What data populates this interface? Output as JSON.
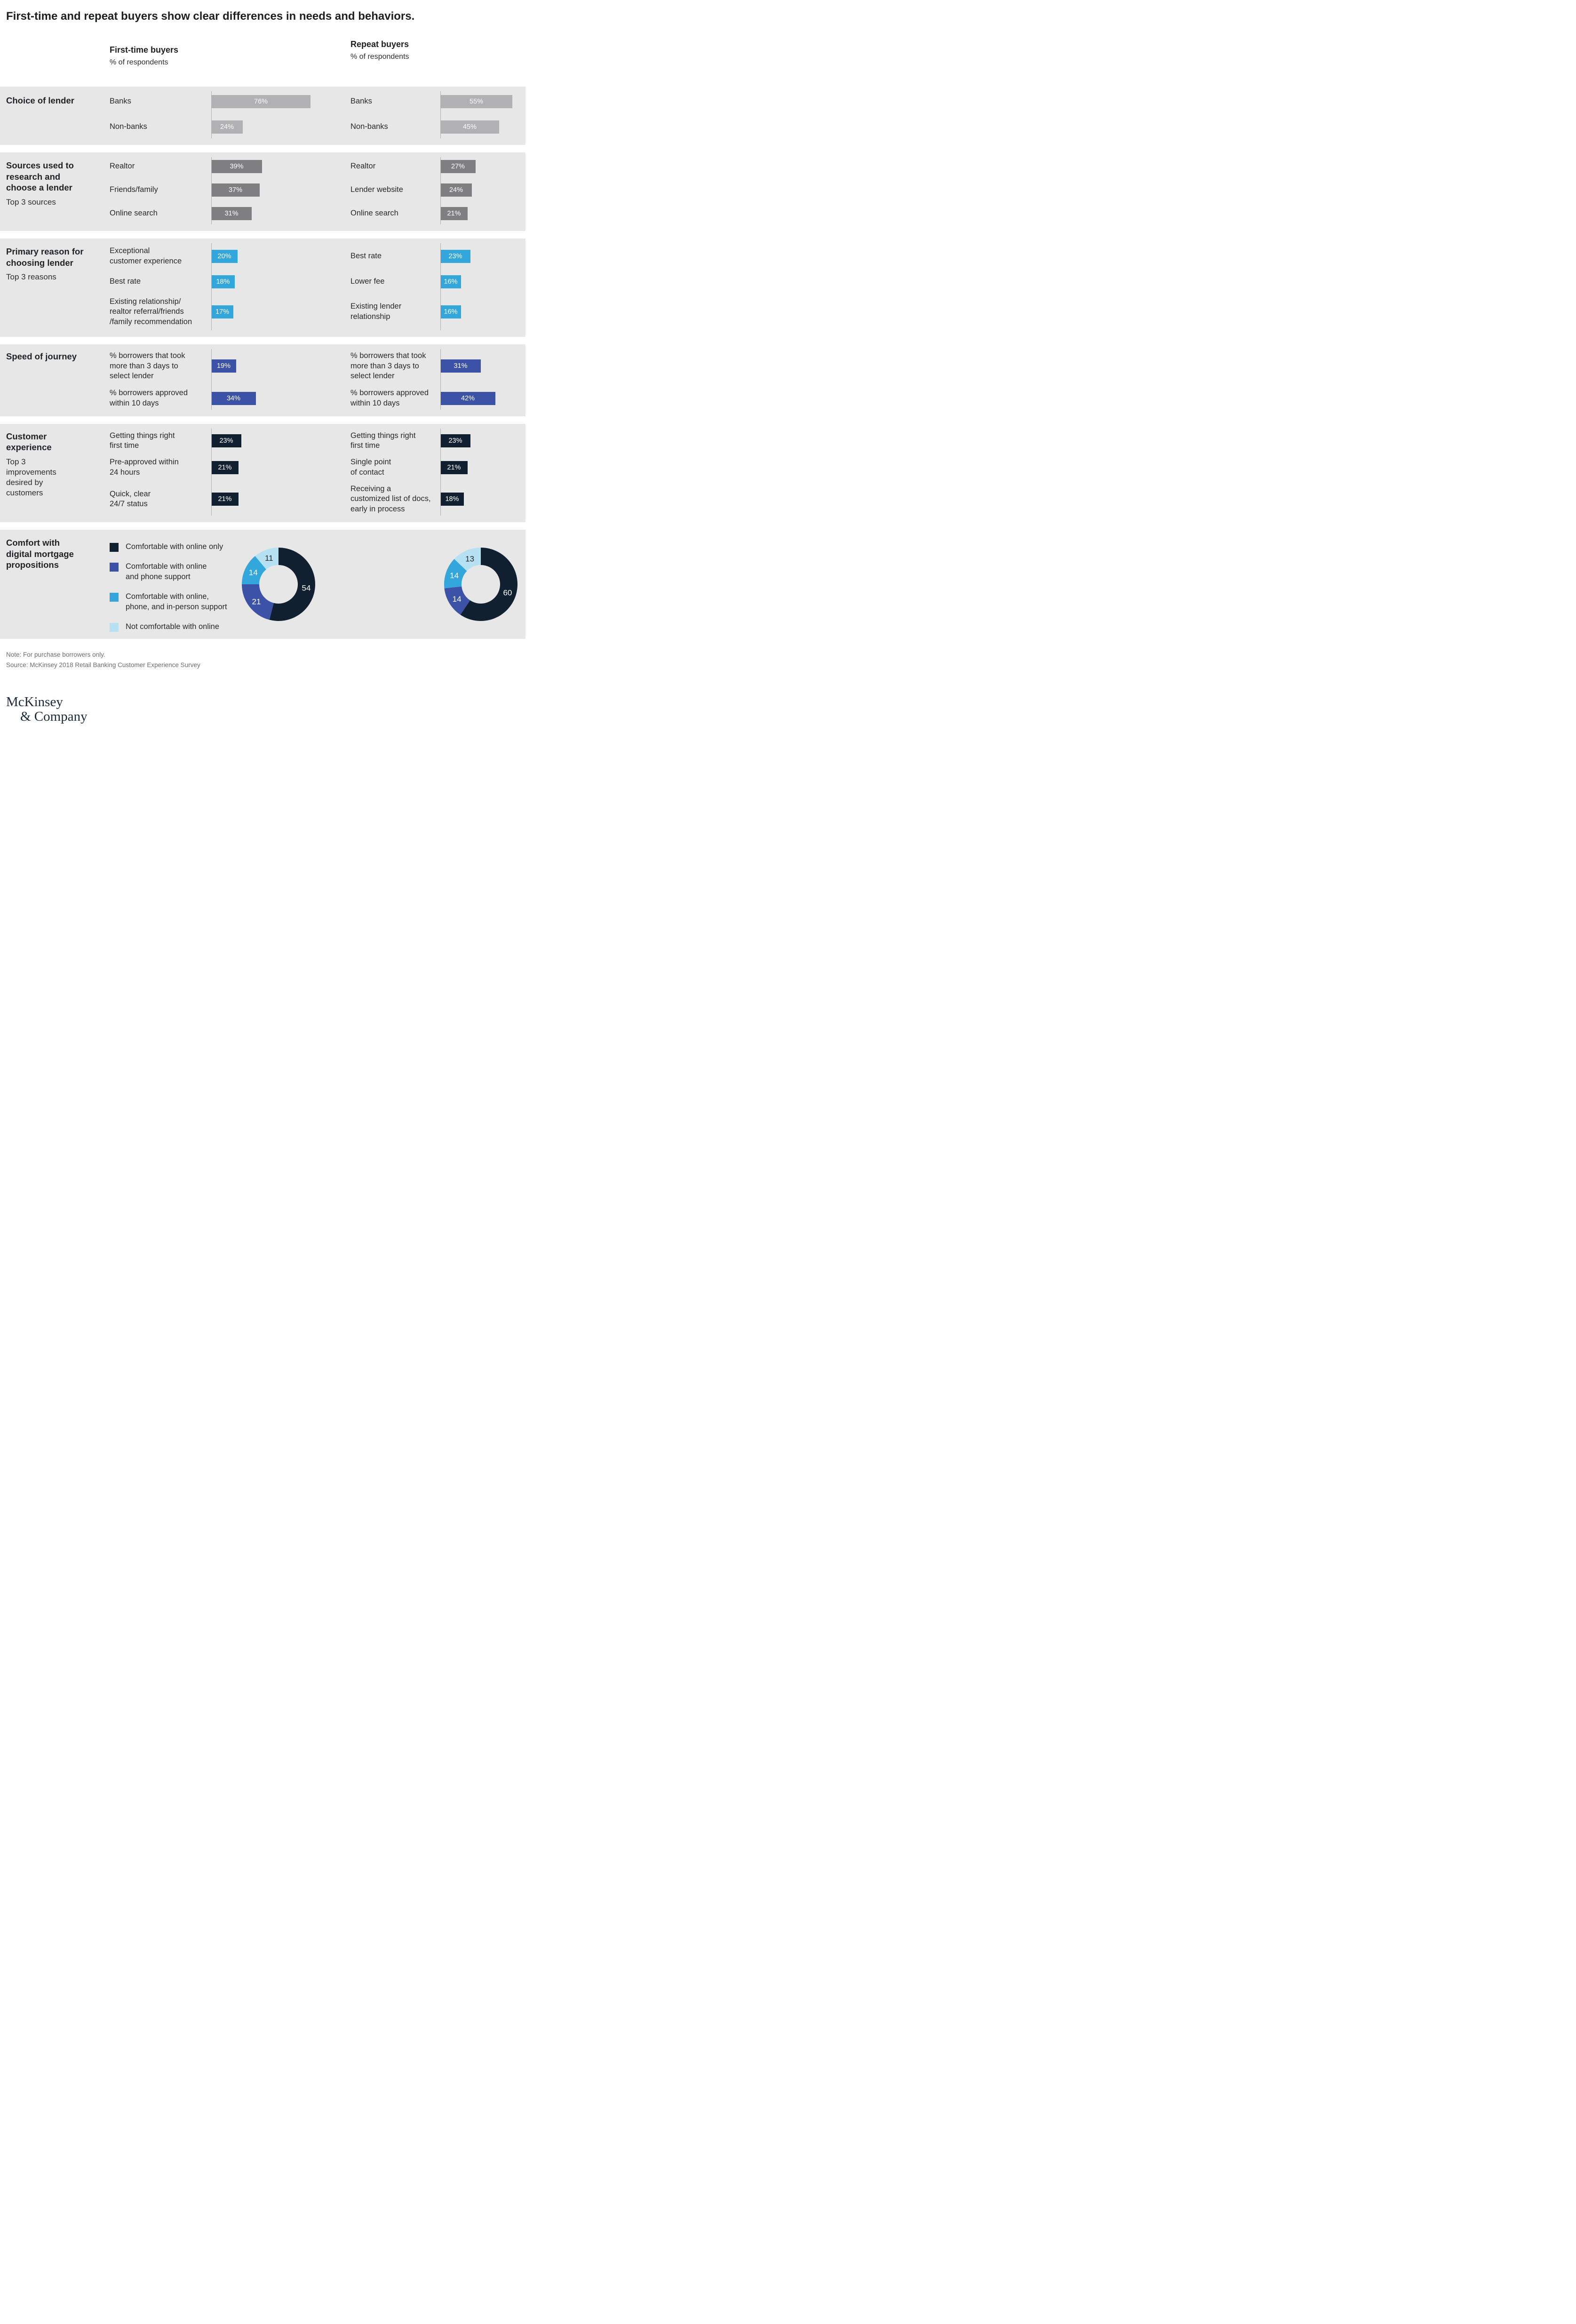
{
  "title": "First-time and repeat buyers show clear differences in needs and behaviors.",
  "columns": {
    "first_time": {
      "title": "First-time buyers",
      "subtitle": "% of respondents"
    },
    "repeat": {
      "title": "Repeat buyers",
      "subtitle": "% of respondents"
    }
  },
  "colors": {
    "band_bg": "#e8e7e7",
    "bar_gray_light": "#b1b1b3",
    "bar_gray_dark": "#7f7f82",
    "blue": "#33a6dc",
    "indigo": "#3c52a7",
    "navy": "#102031",
    "pale_blue": "#b6e1f2",
    "axis": "#b0b0b0",
    "value_text": "#ffffff",
    "dark_text": "#26292c",
    "logo_navy": "#1b2a38"
  },
  "chart_data": [
    {
      "type": "bar",
      "section_title": "Choice of lender",
      "section_sub": "",
      "unit": "%",
      "bar_color_key": "bar_gray_light",
      "series": [
        {
          "name": "First-time buyers",
          "rows": [
            {
              "label": "Banks",
              "value": 76
            },
            {
              "label": "Non-banks",
              "value": 24
            }
          ]
        },
        {
          "name": "Repeat buyers",
          "rows": [
            {
              "label": "Banks",
              "value": 55
            },
            {
              "label": "Non-banks",
              "value": 45
            }
          ]
        }
      ]
    },
    {
      "type": "bar",
      "section_title": "Sources used to\nresearch and\nchoose a lender",
      "section_sub": "Top 3 sources",
      "unit": "%",
      "bar_color_key": "bar_gray_dark",
      "series": [
        {
          "name": "First-time buyers",
          "rows": [
            {
              "label": "Realtor",
              "value": 39
            },
            {
              "label": "Friends/family",
              "value": 37
            },
            {
              "label": "Online search",
              "value": 31
            }
          ]
        },
        {
          "name": "Repeat buyers",
          "rows": [
            {
              "label": "Realtor",
              "value": 27
            },
            {
              "label": "Lender website",
              "value": 24
            },
            {
              "label": "Online search",
              "value": 21
            }
          ]
        }
      ]
    },
    {
      "type": "bar",
      "section_title": "Primary reason for\nchoosing lender",
      "section_sub": "Top 3 reasons",
      "unit": "%",
      "bar_color_key": "blue",
      "series": [
        {
          "name": "First-time buyers",
          "rows": [
            {
              "label": "Exceptional\ncustomer experience",
              "value": 20
            },
            {
              "label": "Best rate",
              "value": 18
            },
            {
              "label": "Existing relationship/\nrealtor referral/friends\n/family recommendation",
              "value": 17
            }
          ]
        },
        {
          "name": "Repeat buyers",
          "rows": [
            {
              "label": "Best rate",
              "value": 23
            },
            {
              "label": "Lower fee",
              "value": 16
            },
            {
              "label": "Existing lender\nrelationship",
              "value": 16
            }
          ]
        }
      ]
    },
    {
      "type": "bar",
      "section_title": "Speed of journey",
      "section_sub": "",
      "unit": "%",
      "bar_color_key": "indigo",
      "series": [
        {
          "name": "First-time buyers",
          "rows": [
            {
              "label": "% borrowers that took\nmore than 3 days to\nselect lender",
              "value": 19
            },
            {
              "label": "% borrowers approved\nwithin 10 days",
              "value": 34
            }
          ]
        },
        {
          "name": "Repeat buyers",
          "rows": [
            {
              "label": "% borrowers that took\nmore than 3 days to\nselect lender",
              "value": 31
            },
            {
              "label": "% borrowers approved\nwithin 10 days",
              "value": 42
            }
          ]
        }
      ]
    },
    {
      "type": "bar",
      "section_title": "Customer\nexperience",
      "section_sub": "Top 3\nimprovements\ndesired by\ncustomers",
      "unit": "%",
      "bar_color_key": "navy",
      "series": [
        {
          "name": "First-time buyers",
          "rows": [
            {
              "label": "Getting things right\nfirst time",
              "value": 23
            },
            {
              "label": "Pre-approved within\n24 hours",
              "value": 21
            },
            {
              "label": "Quick, clear\n24/7 status",
              "value": 21
            }
          ]
        },
        {
          "name": "Repeat buyers",
          "rows": [
            {
              "label": "Getting things right\nfirst time",
              "value": 23
            },
            {
              "label": "Single point\nof contact",
              "value": 21
            },
            {
              "label": "Receiving a\ncustomized list of docs,\nearly in process",
              "value": 18
            }
          ]
        }
      ]
    },
    {
      "type": "donut",
      "section_title": "Comfort with\ndigital mortgage\npropositions",
      "section_sub": "",
      "legend": [
        {
          "label": "Comfortable with online only",
          "color_key": "navy"
        },
        {
          "label": "Comfortable with online\nand phone support",
          "color_key": "indigo"
        },
        {
          "label": "Comfortable with online,\nphone, and in-person support",
          "color_key": "blue"
        },
        {
          "label": "Not comfortable with online",
          "color_key": "pale_blue"
        }
      ],
      "segment_color_keys": [
        "navy",
        "indigo",
        "blue",
        "pale_blue"
      ],
      "series": [
        {
          "name": "First-time buyers",
          "values": [
            54,
            21,
            14,
            11
          ]
        },
        {
          "name": "Repeat buyers",
          "values": [
            60,
            14,
            14,
            13
          ]
        }
      ]
    }
  ],
  "footer": {
    "note": "Note: For purchase borrowers only.",
    "source": "Source: McKinsey 2018 Retail Banking Customer Experience Survey",
    "logo_line1": "McKinsey",
    "logo_line2": "& Company"
  }
}
